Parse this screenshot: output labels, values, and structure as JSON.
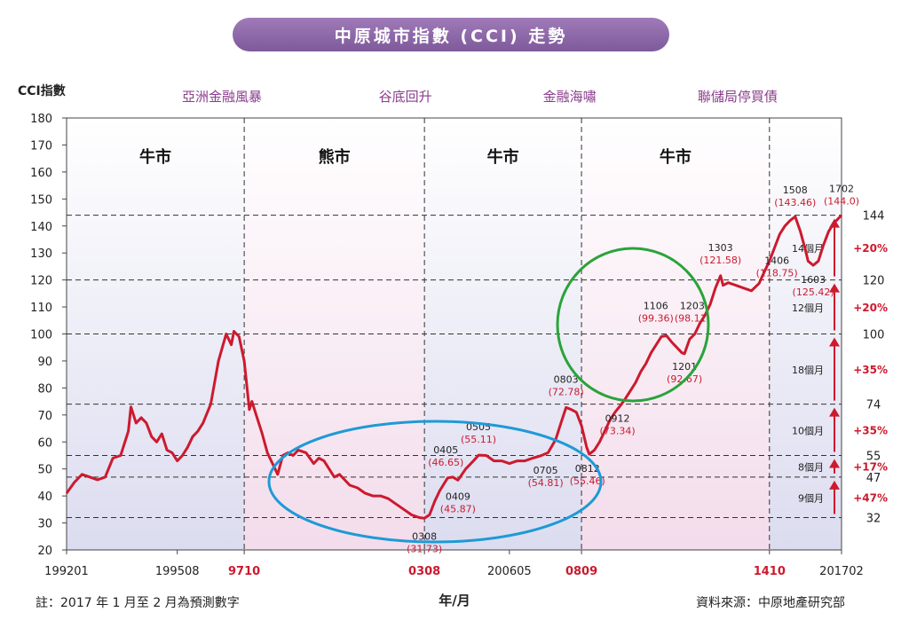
{
  "title": "中原城市指數 (CCI) 走勢",
  "note": "註：2017 年 1 月至 2 月為預測數字",
  "source": "資料來源：中原地產研究部",
  "colors": {
    "line": "#cc1a2e",
    "accent": "#cc1a2e",
    "blue_ellipse": "#1e9ad6",
    "green_ellipse": "#2aa33a",
    "title_bg": "#8e68aa"
  },
  "chart_data": {
    "type": "line",
    "ylabel": "CCI指數",
    "xlabel": "年/月",
    "ylim": [
      20,
      180
    ],
    "yticks": [
      "20",
      "30",
      "40",
      "50",
      "60",
      "70",
      "80",
      "90",
      "100",
      "110",
      "120",
      "130",
      "140",
      "150",
      "160",
      "170",
      "180"
    ],
    "xticks": [
      {
        "label": "199201",
        "t": 0,
        "highlight": false
      },
      {
        "label": "199508",
        "t": 43,
        "highlight": false
      },
      {
        "label": "9710",
        "t": 69,
        "highlight": true
      },
      {
        "label": "0308",
        "t": 139,
        "highlight": true
      },
      {
        "label": "200605",
        "t": 172,
        "highlight": false
      },
      {
        "label": "0809",
        "t": 200,
        "highlight": true
      },
      {
        "label": "1410",
        "t": 273,
        "highlight": true
      },
      {
        "label": "201702",
        "t": 301,
        "highlight": false
      }
    ],
    "events": [
      "亞洲金融風暴",
      "谷底回升",
      "金融海嘯",
      "聯儲局停買債"
    ],
    "phases": [
      "牛市",
      "熊市",
      "牛市",
      "牛市"
    ],
    "phase_boundaries_t": [
      69,
      139,
      200,
      273
    ],
    "reference_levels": [
      {
        "value": 144,
        "label": "144"
      },
      {
        "value": 120,
        "label": "120"
      },
      {
        "value": 100,
        "label": "100"
      },
      {
        "value": 74,
        "label": "74"
      },
      {
        "value": 55,
        "label": "55"
      },
      {
        "value": 47,
        "label": "47"
      },
      {
        "value": 32,
        "label": "32"
      }
    ],
    "gains": [
      {
        "from": 32,
        "to": 47,
        "period": "9個月",
        "pct": "+47%"
      },
      {
        "from": 47,
        "to": 55,
        "period": "8個月",
        "pct": "+17%"
      },
      {
        "from": 55,
        "to": 74,
        "period": "10個月",
        "pct": "+35%"
      },
      {
        "from": 74,
        "to": 100,
        "period": "18個月",
        "pct": "+35%"
      },
      {
        "from": 100,
        "to": 120,
        "period": "12個月",
        "pct": "+20%"
      },
      {
        "from": 120,
        "to": 144,
        "period": "14個月",
        "pct": "+20%"
      }
    ],
    "annotations": [
      {
        "date": "0308",
        "value": "(31.73)",
        "t": 139,
        "y": 31.73
      },
      {
        "date": "0405",
        "value": "(46.65)",
        "t": 148,
        "y": 46.65
      },
      {
        "date": "0409",
        "value": "(45.87)",
        "t": 152,
        "y": 45.87
      },
      {
        "date": "0505",
        "value": "(55.11)",
        "t": 160,
        "y": 55.11
      },
      {
        "date": "0705",
        "value": "(54.81)",
        "t": 184,
        "y": 54.81
      },
      {
        "date": "0803",
        "value": "(72.78)",
        "t": 194,
        "y": 72.78
      },
      {
        "date": "0812",
        "value": "(55.46)",
        "t": 203,
        "y": 55.46
      },
      {
        "date": "0912",
        "value": "(73.34)",
        "t": 215,
        "y": 73.34
      },
      {
        "date": "1106",
        "value": "(99.36)",
        "t": 233,
        "y": 99.36
      },
      {
        "date": "1201",
        "value": "(92.67)",
        "t": 240,
        "y": 92.67
      },
      {
        "date": "1203",
        "value": "(98.11)",
        "t": 242,
        "y": 98.11
      },
      {
        "date": "1303",
        "value": "(121.58)",
        "t": 254,
        "y": 121.58
      },
      {
        "date": "1406",
        "value": "(118.75)",
        "t": 269,
        "y": 118.75
      },
      {
        "date": "1508",
        "value": "(143.46)",
        "t": 283,
        "y": 143.46
      },
      {
        "date": "1603",
        "value": "(125.42)",
        "t": 290,
        "y": 125.42
      },
      {
        "date": "1702",
        "value": "(144.0)",
        "t": 301,
        "y": 144.0
      }
    ],
    "series": [
      {
        "points": [
          [
            0,
            41
          ],
          [
            3,
            45
          ],
          [
            6,
            48
          ],
          [
            9,
            47
          ],
          [
            12,
            46
          ],
          [
            15,
            47
          ],
          [
            18,
            54
          ],
          [
            21,
            55
          ],
          [
            24,
            64
          ],
          [
            25,
            73
          ],
          [
            27,
            67
          ],
          [
            29,
            69
          ],
          [
            31,
            67
          ],
          [
            33,
            62
          ],
          [
            35,
            60
          ],
          [
            37,
            63
          ],
          [
            39,
            57
          ],
          [
            41,
            56
          ],
          [
            43,
            53
          ],
          [
            45,
            55
          ],
          [
            47,
            58
          ],
          [
            49,
            62
          ],
          [
            51,
            64
          ],
          [
            53,
            67
          ],
          [
            56,
            74
          ],
          [
            59,
            90
          ],
          [
            62,
            100
          ],
          [
            64,
            96
          ],
          [
            65,
            101
          ],
          [
            67,
            99
          ],
          [
            69,
            90
          ],
          [
            71,
            72
          ],
          [
            72,
            75
          ],
          [
            74,
            69
          ],
          [
            76,
            63
          ],
          [
            78,
            56
          ],
          [
            80,
            52
          ],
          [
            82,
            48
          ],
          [
            84,
            55
          ],
          [
            86,
            56
          ],
          [
            88,
            55
          ],
          [
            90,
            57
          ],
          [
            93,
            56
          ],
          [
            96,
            52
          ],
          [
            98,
            54
          ],
          [
            100,
            53
          ],
          [
            102,
            50
          ],
          [
            104,
            47
          ],
          [
            106,
            48
          ],
          [
            108,
            46
          ],
          [
            110,
            44
          ],
          [
            113,
            43
          ],
          [
            116,
            41
          ],
          [
            119,
            40
          ],
          [
            122,
            40
          ],
          [
            125,
            39
          ],
          [
            128,
            37
          ],
          [
            131,
            35
          ],
          [
            134,
            33
          ],
          [
            137,
            32
          ],
          [
            139,
            31.73
          ],
          [
            141,
            33
          ],
          [
            143,
            38
          ],
          [
            145,
            42
          ],
          [
            148,
            46.65
          ],
          [
            150,
            47
          ],
          [
            152,
            45.87
          ],
          [
            155,
            50
          ],
          [
            158,
            53
          ],
          [
            160,
            55.11
          ],
          [
            163,
            55
          ],
          [
            166,
            53
          ],
          [
            169,
            53
          ],
          [
            172,
            52
          ],
          [
            175,
            53
          ],
          [
            178,
            53
          ],
          [
            181,
            54
          ],
          [
            184,
            54.81
          ],
          [
            187,
            56
          ],
          [
            190,
            61
          ],
          [
            192,
            67
          ],
          [
            194,
            72.78
          ],
          [
            196,
            72
          ],
          [
            198,
            71
          ],
          [
            200,
            66
          ],
          [
            202,
            58
          ],
          [
            203,
            55.46
          ],
          [
            205,
            57
          ],
          [
            207,
            60
          ],
          [
            209,
            64
          ],
          [
            211,
            68
          ],
          [
            213,
            71
          ],
          [
            215,
            73.34
          ],
          [
            217,
            76
          ],
          [
            219,
            79
          ],
          [
            221,
            82
          ],
          [
            223,
            86
          ],
          [
            225,
            89
          ],
          [
            227,
            93
          ],
          [
            229,
            96
          ],
          [
            231,
            99
          ],
          [
            233,
            99.36
          ],
          [
            235,
            97
          ],
          [
            237,
            95
          ],
          [
            239,
            93
          ],
          [
            240,
            92.67
          ],
          [
            242,
            98.11
          ],
          [
            244,
            100
          ],
          [
            246,
            104
          ],
          [
            248,
            107
          ],
          [
            250,
            111
          ],
          [
            252,
            117
          ],
          [
            254,
            121.58
          ],
          [
            255,
            118
          ],
          [
            257,
            119
          ],
          [
            260,
            118
          ],
          [
            263,
            117
          ],
          [
            266,
            116
          ],
          [
            269,
            118.75
          ],
          [
            271,
            123
          ],
          [
            273,
            127
          ],
          [
            275,
            132
          ],
          [
            277,
            137
          ],
          [
            279,
            140
          ],
          [
            281,
            142
          ],
          [
            283,
            143.46
          ],
          [
            285,
            138
          ],
          [
            287,
            131
          ],
          [
            288,
            127
          ],
          [
            290,
            125.42
          ],
          [
            292,
            127
          ],
          [
            294,
            133
          ],
          [
            296,
            138
          ],
          [
            298,
            141
          ],
          [
            300,
            143
          ],
          [
            301,
            144.0
          ]
        ]
      }
    ]
  }
}
